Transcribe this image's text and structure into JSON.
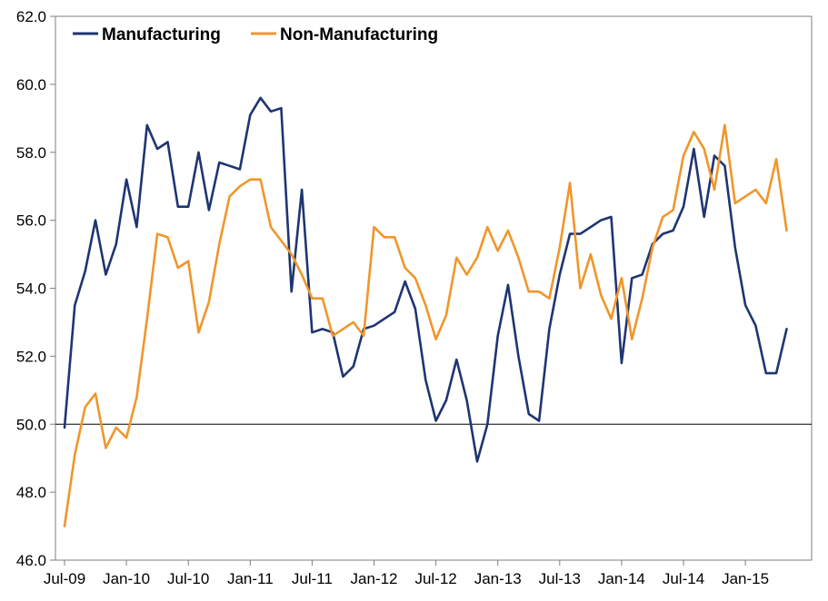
{
  "chart_data": {
    "type": "line",
    "title": "",
    "xlabel": "",
    "ylabel": "",
    "ylim": [
      46,
      62
    ],
    "y_ticks": [
      "46.0",
      "48.0",
      "50.0",
      "52.0",
      "54.0",
      "56.0",
      "58.0",
      "60.0",
      "62.0"
    ],
    "x_ticks": [
      "Jul-09",
      "Jan-10",
      "Jul-10",
      "Jan-11",
      "Jul-11",
      "Jan-12",
      "Jul-12",
      "Jan-13",
      "Jul-13",
      "Jan-14",
      "Jul-14",
      "Jan-15"
    ],
    "x_tick_index": [
      0,
      6,
      12,
      18,
      24,
      30,
      36,
      42,
      48,
      54,
      60,
      66
    ],
    "reference_line": 50,
    "grid": false,
    "legend_position": "top-left",
    "series": [
      {
        "name": "Manufacturing",
        "color": "#1f3572",
        "values": [
          49.9,
          53.5,
          54.5,
          56.0,
          54.4,
          55.3,
          57.2,
          55.8,
          58.8,
          58.1,
          58.3,
          56.4,
          56.4,
          58.0,
          56.3,
          57.7,
          57.6,
          57.5,
          59.1,
          59.6,
          59.2,
          59.3,
          53.9,
          56.9,
          52.7,
          52.8,
          52.7,
          51.4,
          51.7,
          52.8,
          52.9,
          53.1,
          53.3,
          54.2,
          53.4,
          51.3,
          50.1,
          50.7,
          51.9,
          50.7,
          48.9,
          50.0,
          52.6,
          54.1,
          52.0,
          50.3,
          50.1,
          52.8,
          54.4,
          55.6,
          55.6,
          55.8,
          56.0,
          56.1,
          51.8,
          54.3,
          54.4,
          55.3,
          55.6,
          55.7,
          56.4,
          58.1,
          56.1,
          57.9,
          57.6,
          55.2,
          53.5,
          52.9,
          51.5,
          51.5,
          52.8
        ]
      },
      {
        "name": "Non-Manufacturing",
        "color": "#f0962a",
        "values": [
          47.0,
          49.1,
          50.5,
          50.9,
          49.3,
          49.9,
          49.6,
          50.8,
          53.1,
          55.6,
          55.5,
          54.6,
          54.8,
          52.7,
          53.6,
          55.3,
          56.7,
          57.0,
          57.2,
          57.2,
          55.8,
          55.4,
          55.0,
          54.4,
          53.7,
          53.7,
          52.6,
          52.8,
          53.0,
          52.6,
          55.8,
          55.5,
          55.5,
          54.6,
          54.3,
          53.5,
          52.5,
          53.2,
          54.9,
          54.4,
          54.9,
          55.8,
          55.1,
          55.7,
          54.9,
          53.9,
          53.9,
          53.7,
          55.2,
          57.1,
          54.0,
          55.0,
          53.8,
          53.1,
          54.3,
          52.5,
          53.7,
          55.2,
          56.1,
          56.3,
          57.9,
          58.6,
          58.1,
          56.9,
          58.8,
          56.5,
          56.7,
          56.9,
          56.5,
          57.8,
          55.7
        ]
      }
    ]
  }
}
